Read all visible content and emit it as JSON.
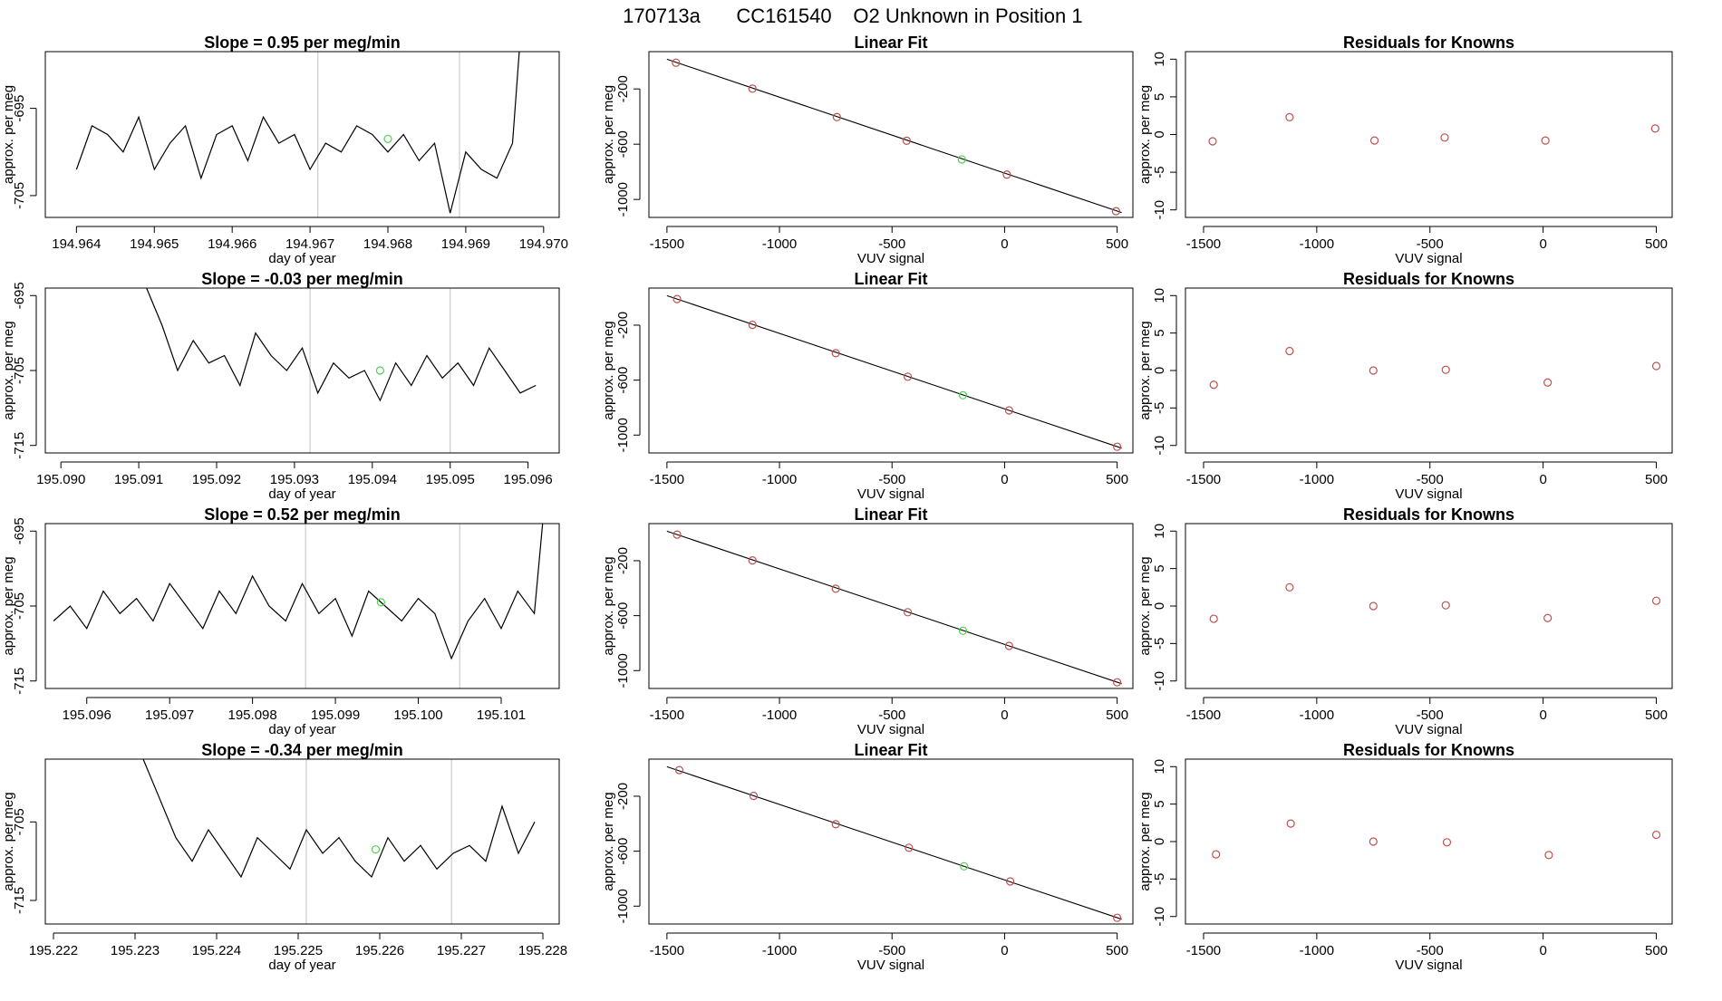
{
  "header": {
    "run_id": "170713a",
    "cylinder_id": "CC161540",
    "description": "O2 Unknown in Position  1"
  },
  "colors": {
    "trace": "#000000",
    "known_points": "#c0504d",
    "unknown_point": "#4cd44c",
    "vertical_markers": "#cccccc",
    "frame": "#000000"
  },
  "chart_data": [
    {
      "type": "line",
      "title": "Slope =  0.95  per meg/min",
      "xlabel": "day of year",
      "ylabel": "approx. per meg",
      "xlim": [
        194.9636,
        194.9702
      ],
      "ylim": [
        -707.5,
        -688.5
      ],
      "xticks": [
        "194.964",
        "194.965",
        "194.966",
        "194.967",
        "194.968",
        "194.969",
        "194.970"
      ],
      "xtick_values": [
        194.964,
        194.965,
        194.966,
        194.967,
        194.968,
        194.969,
        194.97
      ],
      "yticks": [
        "-705",
        "-695"
      ],
      "ytick_values": [
        -705,
        -695
      ],
      "vlines": [
        194.9671,
        194.96892
      ],
      "unknown_point": {
        "x": 194.968,
        "y": -698.5
      },
      "series": [
        {
          "x": [
            194.964,
            194.9642,
            194.9644,
            194.9646,
            194.9648,
            194.965,
            194.9652,
            194.9654,
            194.9656,
            194.9658,
            194.966,
            194.9662,
            194.9664,
            194.9666,
            194.9668,
            194.967,
            194.9672,
            194.9674,
            194.9676,
            194.9678,
            194.968,
            194.9682,
            194.9684,
            194.9686,
            194.9688,
            194.969,
            194.9692,
            194.9694,
            194.9696,
            194.9697
          ],
          "y": [
            -702,
            -697,
            -698,
            -700,
            -696,
            -702,
            -699,
            -697,
            -703,
            -698,
            -697,
            -701,
            -696,
            -699,
            -698,
            -702,
            -699,
            -700,
            -697,
            -698,
            -700,
            -698,
            -701,
            -699,
            -707,
            -700,
            -702,
            -703,
            -699,
            -687
          ]
        }
      ]
    },
    {
      "type": "line",
      "title": "Slope =  -0.03  per meg/min",
      "xlabel": "day of year",
      "ylabel": "approx. per meg",
      "xlim": [
        195.0898,
        195.0964
      ],
      "ylim": [
        -716,
        -694
      ],
      "xticks": [
        "195.090",
        "195.091",
        "195.092",
        "195.093",
        "195.094",
        "195.095",
        "195.096"
      ],
      "xtick_values": [
        195.09,
        195.091,
        195.092,
        195.093,
        195.094,
        195.095,
        195.096
      ],
      "yticks": [
        "-715",
        "-705",
        "-695"
      ],
      "ytick_values": [
        -715,
        -705,
        -695
      ],
      "vlines": [
        195.0932,
        195.095
      ],
      "unknown_point": {
        "x": 195.0941,
        "y": -705.0
      },
      "series": [
        {
          "x": [
            195.0911,
            195.0913,
            195.0915,
            195.0917,
            195.0919,
            195.0921,
            195.0923,
            195.0925,
            195.0927,
            195.0929,
            195.0931,
            195.0933,
            195.0935,
            195.0937,
            195.0939,
            195.0941,
            195.0943,
            195.0945,
            195.0947,
            195.0949,
            195.0951,
            195.0953,
            195.0955,
            195.0957,
            195.0959,
            195.0961
          ],
          "y": [
            -694,
            -699,
            -705,
            -701,
            -704,
            -703,
            -707,
            -700,
            -703,
            -705,
            -702,
            -708,
            -704,
            -706,
            -705,
            -709,
            -704,
            -707,
            -703,
            -706,
            -704,
            -707,
            -702,
            -705,
            -708,
            -707
          ]
        }
      ]
    },
    {
      "type": "line",
      "title": "Slope =  0.52  per meg/min",
      "xlabel": "day of year",
      "ylabel": "approx. per meg",
      "xlim": [
        195.0955,
        195.1017
      ],
      "ylim": [
        -716,
        -694
      ],
      "xticks": [
        "195.096",
        "195.097",
        "195.098",
        "195.099",
        "195.100",
        "195.101"
      ],
      "xtick_values": [
        195.096,
        195.097,
        195.098,
        195.099,
        195.1,
        195.101
      ],
      "yticks": [
        "-715",
        "-705",
        "-695"
      ],
      "ytick_values": [
        -715,
        -705,
        -695
      ],
      "vlines": [
        195.09864,
        195.1005
      ],
      "unknown_point": {
        "x": 195.09955,
        "y": -704.5
      },
      "series": [
        {
          "x": [
            195.0956,
            195.0958,
            195.096,
            195.0962,
            195.0964,
            195.0966,
            195.0968,
            195.097,
            195.0972,
            195.0974,
            195.0976,
            195.0978,
            195.098,
            195.0982,
            195.0984,
            195.0986,
            195.0988,
            195.099,
            195.0992,
            195.0994,
            195.0996,
            195.0998,
            195.1,
            195.1002,
            195.1004,
            195.1006,
            195.1008,
            195.101,
            195.1012,
            195.1014,
            195.1015
          ],
          "y": [
            -707,
            -705,
            -708,
            -703,
            -706,
            -704,
            -707,
            -702,
            -705,
            -708,
            -703,
            -706,
            -701,
            -705,
            -707,
            -702,
            -706,
            -704,
            -709,
            -703,
            -705,
            -707,
            -704,
            -706,
            -712,
            -707,
            -704,
            -708,
            -703,
            -706,
            -694
          ]
        }
      ]
    },
    {
      "type": "line",
      "title": "Slope =  -0.34  per meg/min",
      "xlabel": "day of year",
      "ylabel": "approx. per meg",
      "xlim": [
        195.2219,
        195.2282
      ],
      "ylim": [
        -718,
        -697
      ],
      "xticks": [
        "195.222",
        "195.223",
        "195.224",
        "195.225",
        "195.226",
        "195.227",
        "195.228"
      ],
      "xtick_values": [
        195.222,
        195.223,
        195.224,
        195.225,
        195.226,
        195.227,
        195.228
      ],
      "yticks": [
        "-715",
        "-705"
      ],
      "ytick_values": [
        -715,
        -705
      ],
      "vlines": [
        195.2251,
        195.22688
      ],
      "unknown_point": {
        "x": 195.22595,
        "y": -708.5
      },
      "series": [
        {
          "x": [
            195.2231,
            195.2233,
            195.2235,
            195.2237,
            195.2239,
            195.2241,
            195.2243,
            195.2245,
            195.2247,
            195.2249,
            195.2251,
            195.2253,
            195.2255,
            195.2257,
            195.2259,
            195.2261,
            195.2263,
            195.2265,
            195.2267,
            195.2269,
            195.2271,
            195.2273,
            195.2275,
            195.2277,
            195.2279
          ],
          "y": [
            -697,
            -702,
            -707,
            -710,
            -706,
            -709,
            -712,
            -707,
            -709,
            -711,
            -706,
            -709,
            -707,
            -710,
            -712,
            -707,
            -710,
            -708,
            -711,
            -709,
            -708,
            -710,
            -703,
            -709,
            -705
          ]
        }
      ]
    },
    {
      "type": "scatter",
      "title": "Linear Fit",
      "xlabel": "VUV signal",
      "ylabel": "approx. per meg",
      "xlim": [
        -1580,
        570
      ],
      "ylim": [
        -1130,
        70
      ],
      "xticks": [
        "-1500",
        "-1000",
        "-500",
        "0",
        "500"
      ],
      "xtick_values": [
        -1500,
        -1000,
        -500,
        0,
        500
      ],
      "yticks": [
        "-1000",
        "-600",
        "-200"
      ],
      "ytick_values": [
        -1000,
        -600,
        -200
      ],
      "fit_line": [
        [
          -1500,
          15
        ],
        [
          520,
          -1095
        ]
      ],
      "known_points": [
        [
          -1460,
          -10
        ],
        [
          -1120,
          -198
        ],
        [
          -745,
          -404
        ],
        [
          -435,
          -575
        ],
        [
          10,
          -820
        ],
        [
          495,
          -1085
        ]
      ],
      "unknown_point": [
        -190,
        -710
      ]
    },
    {
      "type": "scatter",
      "title": "Linear Fit",
      "xlabel": "VUV signal",
      "ylabel": "approx. per meg",
      "xlim": [
        -1580,
        570
      ],
      "ylim": [
        -1130,
        70
      ],
      "xticks": [
        "-1500",
        "-1000",
        "-500",
        "0",
        "500"
      ],
      "xtick_values": [
        -1500,
        -1000,
        -500,
        0,
        500
      ],
      "yticks": [
        "-1000",
        "-600",
        "-200"
      ],
      "ytick_values": [
        -1000,
        -600,
        -200
      ],
      "fit_line": [
        [
          -1500,
          15
        ],
        [
          520,
          -1095
        ]
      ],
      "known_points": [
        [
          -1455,
          -10
        ],
        [
          -1120,
          -198
        ],
        [
          -750,
          -404
        ],
        [
          -430,
          -575
        ],
        [
          20,
          -820
        ],
        [
          500,
          -1085
        ]
      ],
      "unknown_point": [
        -185,
        -710
      ]
    },
    {
      "type": "scatter",
      "title": "Linear Fit",
      "xlabel": "VUV signal",
      "ylabel": "approx. per meg",
      "xlim": [
        -1580,
        570
      ],
      "ylim": [
        -1130,
        70
      ],
      "xticks": [
        "-1500",
        "-1000",
        "-500",
        "0",
        "500"
      ],
      "xtick_values": [
        -1500,
        -1000,
        -500,
        0,
        500
      ],
      "yticks": [
        "-1000",
        "-600",
        "-200"
      ],
      "ytick_values": [
        -1000,
        -600,
        -200
      ],
      "fit_line": [
        [
          -1500,
          15
        ],
        [
          520,
          -1095
        ]
      ],
      "known_points": [
        [
          -1455,
          -10
        ],
        [
          -1120,
          -198
        ],
        [
          -750,
          -404
        ],
        [
          -430,
          -575
        ],
        [
          20,
          -820
        ],
        [
          500,
          -1085
        ]
      ],
      "unknown_point": [
        -185,
        -710
      ]
    },
    {
      "type": "scatter",
      "title": "Linear Fit",
      "xlabel": "VUV signal",
      "ylabel": "approx. per meg",
      "xlim": [
        -1580,
        570
      ],
      "ylim": [
        -1130,
        70
      ],
      "xticks": [
        "-1500",
        "-1000",
        "-500",
        "0",
        "500"
      ],
      "xtick_values": [
        -1500,
        -1000,
        -500,
        0,
        500
      ],
      "yticks": [
        "-1000",
        "-600",
        "-200"
      ],
      "ytick_values": [
        -1000,
        -600,
        -200
      ],
      "fit_line": [
        [
          -1500,
          15
        ],
        [
          520,
          -1095
        ]
      ],
      "known_points": [
        [
          -1445,
          -10
        ],
        [
          -1115,
          -198
        ],
        [
          -750,
          -404
        ],
        [
          -425,
          -575
        ],
        [
          25,
          -820
        ],
        [
          500,
          -1085
        ]
      ],
      "unknown_point": [
        -180,
        -710
      ]
    },
    {
      "type": "scatter",
      "title": "Residuals for Knowns",
      "xlabel": "VUV signal",
      "ylabel": "approx. per meg",
      "xlim": [
        -1580,
        570
      ],
      "ylim": [
        -11,
        11
      ],
      "xticks": [
        "-1500",
        "-1000",
        "-500",
        "0",
        "500"
      ],
      "xtick_values": [
        -1500,
        -1000,
        -500,
        0,
        500
      ],
      "yticks": [
        "-10",
        "-5",
        "0",
        "5",
        "10"
      ],
      "ytick_values": [
        -10,
        -5,
        0,
        5,
        10
      ],
      "known_points": [
        [
          -1460,
          -0.9
        ],
        [
          -1120,
          2.3
        ],
        [
          -745,
          -0.8
        ],
        [
          -435,
          -0.4
        ],
        [
          10,
          -0.8
        ],
        [
          495,
          0.8
        ]
      ]
    },
    {
      "type": "scatter",
      "title": "Residuals for Knowns",
      "xlabel": "VUV signal",
      "ylabel": "approx. per meg",
      "xlim": [
        -1580,
        570
      ],
      "ylim": [
        -11,
        11
      ],
      "xticks": [
        "-1500",
        "-1000",
        "-500",
        "0",
        "500"
      ],
      "xtick_values": [
        -1500,
        -1000,
        -500,
        0,
        500
      ],
      "yticks": [
        "-10",
        "-5",
        "0",
        "5",
        "10"
      ],
      "ytick_values": [
        -10,
        -5,
        0,
        5,
        10
      ],
      "known_points": [
        [
          -1455,
          -1.9
        ],
        [
          -1120,
          2.6
        ],
        [
          -750,
          0.0
        ],
        [
          -430,
          0.1
        ],
        [
          20,
          -1.6
        ],
        [
          500,
          0.6
        ]
      ]
    },
    {
      "type": "scatter",
      "title": "Residuals for Knowns",
      "xlabel": "VUV signal",
      "ylabel": "approx. per meg",
      "xlim": [
        -1580,
        570
      ],
      "ylim": [
        -11,
        11
      ],
      "xticks": [
        "-1500",
        "-1000",
        "-500",
        "0",
        "500"
      ],
      "xtick_values": [
        -1500,
        -1000,
        -500,
        0,
        500
      ],
      "yticks": [
        "-10",
        "-5",
        "0",
        "5",
        "10"
      ],
      "ytick_values": [
        -10,
        -5,
        0,
        5,
        10
      ],
      "known_points": [
        [
          -1455,
          -1.7
        ],
        [
          -1120,
          2.5
        ],
        [
          -750,
          0.0
        ],
        [
          -430,
          0.1
        ],
        [
          20,
          -1.6
        ],
        [
          500,
          0.7
        ]
      ]
    },
    {
      "type": "scatter",
      "title": "Residuals for Knowns",
      "xlabel": "VUV signal",
      "ylabel": "approx. per meg",
      "xlim": [
        -1580,
        570
      ],
      "ylim": [
        -11,
        11
      ],
      "xticks": [
        "-1500",
        "-1000",
        "-500",
        "0",
        "500"
      ],
      "xtick_values": [
        -1500,
        -1000,
        -500,
        0,
        500
      ],
      "yticks": [
        "-10",
        "-5",
        "0",
        "5",
        "10"
      ],
      "ytick_values": [
        -10,
        -5,
        0,
        5,
        10
      ],
      "known_points": [
        [
          -1445,
          -1.7
        ],
        [
          -1115,
          2.4
        ],
        [
          -750,
          0.0
        ],
        [
          -425,
          -0.1
        ],
        [
          25,
          -1.8
        ],
        [
          500,
          0.9
        ]
      ]
    }
  ]
}
